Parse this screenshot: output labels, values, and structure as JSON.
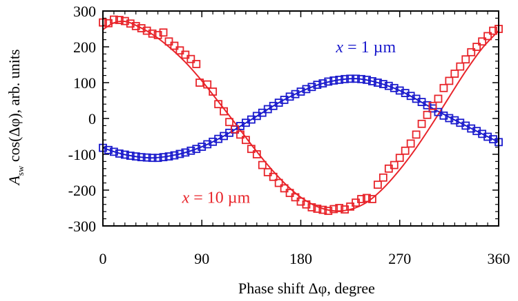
{
  "chart_data": {
    "type": "scatter",
    "xlabel": "Phase shift Δφ, degree",
    "ylabel": {
      "prefix": "A",
      "subscript": "sw",
      "rest": " cos(Δφ), arb. units"
    },
    "xlim": [
      0,
      360
    ],
    "ylim": [
      -300,
      300
    ],
    "xticks": [
      0,
      90,
      180,
      270,
      360
    ],
    "yticks": [
      300,
      200,
      100,
      0,
      -100,
      -200,
      -300
    ],
    "legend": "none",
    "grid": false,
    "series": [
      {
        "label_var": "x",
        "label_text": " = 1 µm",
        "color": "#1a1acc",
        "marker": "open-square",
        "label_at": [
          212,
          185
        ],
        "points": [
          [
            0,
            -82
          ],
          [
            5,
            -88
          ],
          [
            10,
            -93
          ],
          [
            15,
            -98
          ],
          [
            20,
            -101
          ],
          [
            25,
            -104
          ],
          [
            30,
            -106
          ],
          [
            35,
            -108
          ],
          [
            40,
            -109
          ],
          [
            45,
            -110
          ],
          [
            50,
            -110
          ],
          [
            55,
            -108
          ],
          [
            60,
            -106
          ],
          [
            65,
            -103
          ],
          [
            70,
            -99
          ],
          [
            75,
            -95
          ],
          [
            80,
            -90
          ],
          [
            85,
            -85
          ],
          [
            90,
            -79
          ],
          [
            95,
            -72
          ],
          [
            100,
            -65
          ],
          [
            105,
            -57
          ],
          [
            110,
            -49
          ],
          [
            115,
            -40
          ],
          [
            120,
            -31
          ],
          [
            125,
            -21
          ],
          [
            130,
            -12
          ],
          [
            135,
            -3
          ],
          [
            140,
            7
          ],
          [
            145,
            16
          ],
          [
            150,
            26
          ],
          [
            155,
            35
          ],
          [
            160,
            44
          ],
          [
            165,
            52
          ],
          [
            170,
            61
          ],
          [
            175,
            68
          ],
          [
            180,
            75
          ],
          [
            185,
            82
          ],
          [
            190,
            88
          ],
          [
            195,
            94
          ],
          [
            200,
            98
          ],
          [
            205,
            103
          ],
          [
            210,
            106
          ],
          [
            215,
            108
          ],
          [
            220,
            110
          ],
          [
            225,
            111
          ],
          [
            230,
            111
          ],
          [
            235,
            110
          ],
          [
            240,
            108
          ],
          [
            245,
            104
          ],
          [
            250,
            100
          ],
          [
            255,
            96
          ],
          [
            260,
            91
          ],
          [
            265,
            85
          ],
          [
            270,
            78
          ],
          [
            275,
            71
          ],
          [
            280,
            63
          ],
          [
            285,
            55
          ],
          [
            290,
            46
          ],
          [
            295,
            37
          ],
          [
            300,
            28
          ],
          [
            305,
            18
          ],
          [
            310,
            8
          ],
          [
            315,
            1
          ],
          [
            320,
            -5
          ],
          [
            325,
            -12
          ],
          [
            330,
            -20
          ],
          [
            335,
            -28
          ],
          [
            340,
            -35
          ],
          [
            345,
            -43
          ],
          [
            350,
            -51
          ],
          [
            355,
            -58
          ],
          [
            360,
            -66
          ]
        ],
        "fit": [
          [
            0,
            -82
          ],
          [
            20,
            -101
          ],
          [
            45,
            -110
          ],
          [
            70,
            -99
          ],
          [
            90,
            -79
          ],
          [
            110,
            -49
          ],
          [
            135,
            -3
          ],
          [
            160,
            44
          ],
          [
            180,
            75
          ],
          [
            200,
            98
          ],
          [
            225,
            111
          ],
          [
            245,
            104
          ],
          [
            270,
            78
          ],
          [
            300,
            28
          ],
          [
            330,
            -20
          ],
          [
            360,
            -66
          ]
        ]
      },
      {
        "label_var": "x",
        "label_text": " = 10 µm",
        "color": "#e8242a",
        "marker": "open-square",
        "label_at": [
          72,
          -236
        ],
        "points": [
          [
            0,
            268
          ],
          [
            5,
            266
          ],
          [
            10,
            276
          ],
          [
            15,
            275
          ],
          [
            20,
            272
          ],
          [
            25,
            265
          ],
          [
            30,
            258
          ],
          [
            35,
            252
          ],
          [
            40,
            245
          ],
          [
            45,
            237
          ],
          [
            50,
            233
          ],
          [
            55,
            240
          ],
          [
            60,
            215
          ],
          [
            65,
            203
          ],
          [
            70,
            190
          ],
          [
            75,
            178
          ],
          [
            80,
            166
          ],
          [
            85,
            152
          ],
          [
            88,
            100
          ],
          [
            95,
            95
          ],
          [
            100,
            75
          ],
          [
            105,
            40
          ],
          [
            110,
            20
          ],
          [
            115,
            -10
          ],
          [
            120,
            -30
          ],
          [
            125,
            -45
          ],
          [
            130,
            -60
          ],
          [
            135,
            -85
          ],
          [
            140,
            -100
          ],
          [
            145,
            -130
          ],
          [
            150,
            -150
          ],
          [
            155,
            -163
          ],
          [
            160,
            -180
          ],
          [
            165,
            -195
          ],
          [
            170,
            -208
          ],
          [
            175,
            -220
          ],
          [
            180,
            -232
          ],
          [
            185,
            -240
          ],
          [
            190,
            -248
          ],
          [
            195,
            -252
          ],
          [
            200,
            -255
          ],
          [
            205,
            -258
          ],
          [
            210,
            -253
          ],
          [
            215,
            -250
          ],
          [
            220,
            -254
          ],
          [
            225,
            -246
          ],
          [
            230,
            -235
          ],
          [
            235,
            -225
          ],
          [
            240,
            -222
          ],
          [
            245,
            -225
          ],
          [
            250,
            -185
          ],
          [
            255,
            -165
          ],
          [
            260,
            -140
          ],
          [
            265,
            -130
          ],
          [
            270,
            -110
          ],
          [
            275,
            -90
          ],
          [
            280,
            -70
          ],
          [
            285,
            -45
          ],
          [
            290,
            -15
          ],
          [
            295,
            10
          ],
          [
            300,
            35
          ],
          [
            305,
            55
          ],
          [
            310,
            85
          ],
          [
            315,
            105
          ],
          [
            320,
            125
          ],
          [
            325,
            145
          ],
          [
            330,
            165
          ],
          [
            335,
            185
          ],
          [
            340,
            200
          ],
          [
            345,
            215
          ],
          [
            350,
            230
          ],
          [
            355,
            245
          ],
          [
            360,
            250
          ]
        ],
        "fit": [
          [
            0,
            248
          ],
          [
            10,
            267
          ],
          [
            20,
            271
          ],
          [
            30,
            260
          ],
          [
            45,
            235
          ],
          [
            60,
            200
          ],
          [
            75,
            157
          ],
          [
            90,
            105
          ],
          [
            105,
            47
          ],
          [
            120,
            -12
          ],
          [
            135,
            -73
          ],
          [
            150,
            -130
          ],
          [
            165,
            -180
          ],
          [
            180,
            -220
          ],
          [
            195,
            -246
          ],
          [
            210,
            -258
          ],
          [
            225,
            -254
          ],
          [
            240,
            -234
          ],
          [
            255,
            -195
          ],
          [
            270,
            -143
          ],
          [
            285,
            -82
          ],
          [
            300,
            -13
          ],
          [
            315,
            60
          ],
          [
            330,
            132
          ],
          [
            345,
            196
          ],
          [
            360,
            245
          ]
        ]
      }
    ]
  }
}
